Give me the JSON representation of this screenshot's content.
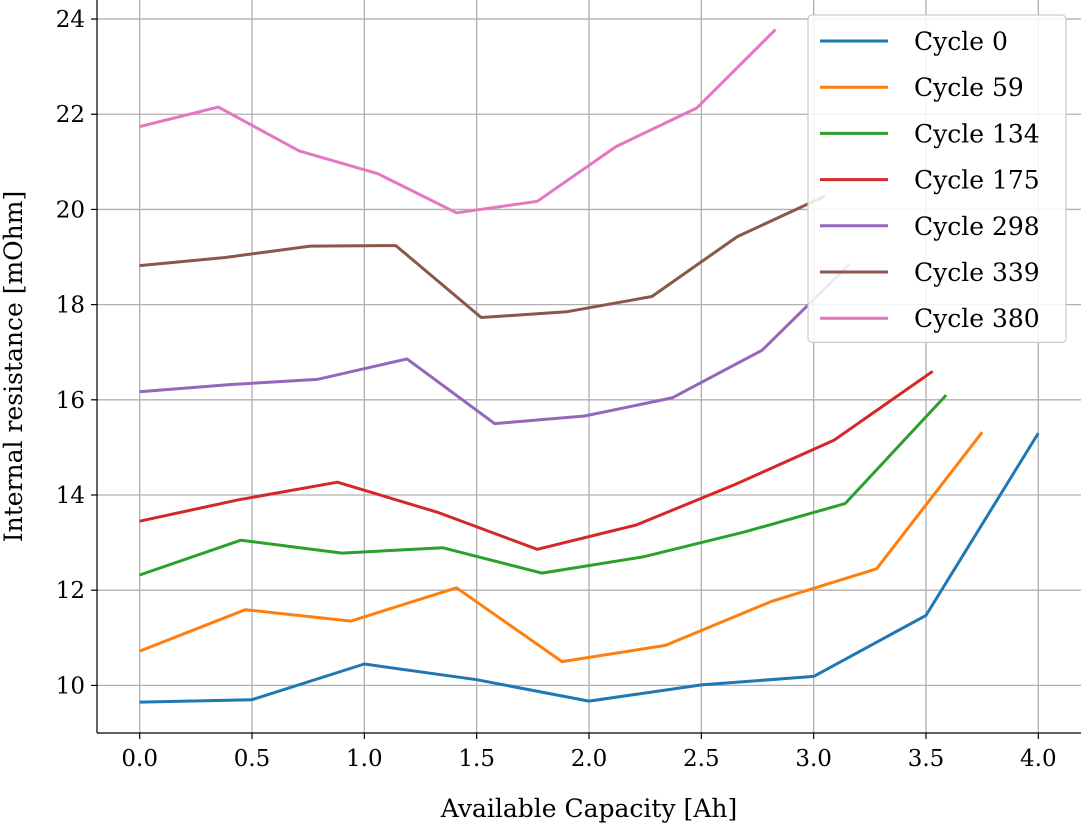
{
  "chart_data": {
    "type": "line",
    "title": "",
    "xlabel": "Available Capacity [Ah]",
    "ylabel": "Internal resistance [mOhm]",
    "xlim": [
      -0.19,
      4.19
    ],
    "ylim": [
      9.0,
      24.4
    ],
    "xticks": [
      0.0,
      0.5,
      1.0,
      1.5,
      2.0,
      2.5,
      3.0,
      3.5,
      4.0
    ],
    "xtick_labels": [
      "0.0",
      "0.5",
      "1.0",
      "1.5",
      "2.0",
      "2.5",
      "3.0",
      "3.5",
      "4.0"
    ],
    "yticks": [
      10,
      12,
      14,
      16,
      18,
      20,
      22,
      24
    ],
    "ytick_labels": [
      "10",
      "12",
      "14",
      "16",
      "18",
      "20",
      "22",
      "24"
    ],
    "grid": true,
    "legend_position": "top-right",
    "series": [
      {
        "name": "Cycle 0",
        "color": "#1f77b4",
        "x": [
          0.0,
          0.5,
          1.0,
          1.5,
          2.0,
          2.5,
          3.0,
          3.5,
          4.0
        ],
        "y": [
          9.65,
          9.7,
          10.45,
          10.12,
          9.67,
          10.01,
          10.19,
          11.47,
          15.3
        ]
      },
      {
        "name": "Cycle 59",
        "color": "#ff7f0e",
        "x": [
          0.0,
          0.47,
          0.94,
          1.41,
          1.88,
          2.34,
          2.81,
          3.28,
          3.75
        ],
        "y": [
          10.72,
          11.59,
          11.35,
          12.05,
          10.5,
          10.84,
          11.76,
          12.45,
          15.32
        ]
      },
      {
        "name": "Cycle 134",
        "color": "#2ca02c",
        "x": [
          0.0,
          0.45,
          0.9,
          1.35,
          1.79,
          2.24,
          2.69,
          3.14,
          3.59
        ],
        "y": [
          12.32,
          13.05,
          12.78,
          12.89,
          12.36,
          12.7,
          13.22,
          13.82,
          16.1
        ]
      },
      {
        "name": "Cycle 175",
        "color": "#d62728",
        "x": [
          0.0,
          0.44,
          0.88,
          1.33,
          1.77,
          2.21,
          2.65,
          3.09,
          3.53
        ],
        "y": [
          13.45,
          13.9,
          14.27,
          13.63,
          12.86,
          13.37,
          14.22,
          15.15,
          16.6
        ]
      },
      {
        "name": "Cycle 298",
        "color": "#9467bd",
        "x": [
          0.0,
          0.4,
          0.79,
          1.19,
          1.58,
          1.98,
          2.37,
          2.77,
          3.16
        ],
        "y": [
          16.17,
          16.32,
          16.43,
          16.86,
          15.5,
          15.66,
          16.04,
          17.04,
          18.85
        ]
      },
      {
        "name": "Cycle 339",
        "color": "#8c564b",
        "x": [
          0.0,
          0.38,
          0.76,
          1.14,
          1.52,
          1.9,
          2.28,
          2.66,
          3.05
        ],
        "y": [
          18.82,
          18.99,
          19.23,
          19.24,
          17.73,
          17.85,
          18.17,
          19.43,
          20.28
        ]
      },
      {
        "name": "Cycle 380",
        "color": "#e377c2",
        "x": [
          0.0,
          0.35,
          0.71,
          1.06,
          1.41,
          1.77,
          2.12,
          2.48,
          2.83
        ],
        "y": [
          21.74,
          22.15,
          21.23,
          20.75,
          19.93,
          20.17,
          21.32,
          22.13,
          23.78
        ]
      }
    ]
  }
}
